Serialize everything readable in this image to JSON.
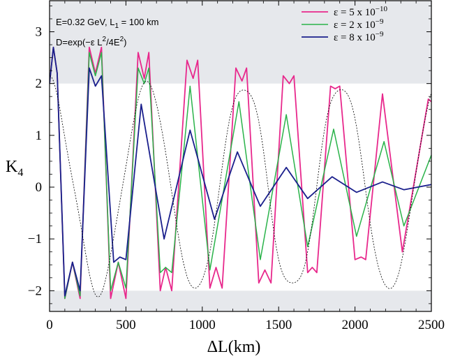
{
  "chart_data": {
    "type": "line",
    "xlabel_main": "ΔL",
    "xlabel_unit": "(km)",
    "ylabel_main": "K",
    "ylabel_sub": "4",
    "xlim": [
      0,
      2500
    ],
    "ylim": [
      -2.4,
      3.6
    ],
    "x_ticks": [
      0,
      500,
      1000,
      1500,
      2000,
      2500
    ],
    "x_tick_labels": [
      "0",
      "500",
      "1000",
      "1500",
      "2000",
      "2500"
    ],
    "y_ticks": [
      -2,
      -1,
      0,
      1,
      2,
      3
    ],
    "y_tick_labels": [
      "−2",
      "−1",
      "0",
      "1",
      "2",
      "3"
    ],
    "shaded_bands": [
      [
        2,
        3.6
      ],
      [
        -2.4,
        -2
      ]
    ],
    "band_color": "#e6e8ec",
    "annotation": {
      "line1_a": "E=0.32 GeV, L",
      "line1_sub": "1",
      "line1_b": " = 100 km",
      "line2_a": "D=exp(−ε L",
      "line2_sup": "2",
      "line2_b": "/4E",
      "line2_sup2": "2",
      "line2_c": ")"
    },
    "model": {
      "base_offset_km": 100,
      "amplitude": 2.15,
      "fast_period_km": 636,
      "slow_period_km": 3150,
      "phase_km": 0,
      "damping_scale": 780000
    },
    "series": [
      {
        "name_prefix": "ε = 5 x 10",
        "name_exp": "−10",
        "epsilon": 5e-10,
        "color": "#e8288c",
        "width": 1.8,
        "dash": "",
        "points": [
          [
            0,
            2.0
          ],
          [
            25,
            2.7
          ],
          [
            50,
            2.2
          ],
          [
            100,
            -2.15
          ],
          [
            150,
            -1.45
          ],
          [
            200,
            -2.15
          ],
          [
            260,
            2.7
          ],
          [
            300,
            2.2
          ],
          [
            340,
            2.7
          ],
          [
            400,
            -2.15
          ],
          [
            450,
            -1.45
          ],
          [
            500,
            -2.15
          ],
          [
            580,
            2.6
          ],
          [
            620,
            2.1
          ],
          [
            650,
            2.6
          ],
          [
            725,
            -2.0
          ],
          [
            760,
            -1.55
          ],
          [
            800,
            -2.0
          ],
          [
            900,
            2.45
          ],
          [
            940,
            2.1
          ],
          [
            970,
            2.45
          ],
          [
            1050,
            -1.95
          ],
          [
            1090,
            -1.55
          ],
          [
            1130,
            -1.95
          ],
          [
            1220,
            2.3
          ],
          [
            1260,
            2.05
          ],
          [
            1290,
            2.3
          ],
          [
            1370,
            -1.85
          ],
          [
            1410,
            -1.6
          ],
          [
            1450,
            -1.85
          ],
          [
            1530,
            2.15
          ],
          [
            1570,
            2.0
          ],
          [
            1600,
            2.15
          ],
          [
            1690,
            -1.65
          ],
          [
            1720,
            -1.55
          ],
          [
            1750,
            -1.65
          ],
          [
            1840,
            1.95
          ],
          [
            1870,
            1.9
          ],
          [
            1900,
            1.95
          ],
          [
            2000,
            -1.4
          ],
          [
            2040,
            -1.35
          ],
          [
            2070,
            -1.4
          ],
          [
            2180,
            1.8
          ],
          [
            2310,
            -1.25
          ],
          [
            2480,
            1.7
          ],
          [
            2500,
            1.65
          ]
        ]
      },
      {
        "name_prefix": "ε = 2 x 10",
        "name_exp": "−9",
        "epsilon": 2e-09,
        "color": "#2ab34a",
        "width": 1.5,
        "dash": "",
        "points": [
          [
            0,
            2.0
          ],
          [
            25,
            2.7
          ],
          [
            50,
            2.2
          ],
          [
            100,
            -2.15
          ],
          [
            150,
            -1.45
          ],
          [
            200,
            -2.1
          ],
          [
            260,
            2.6
          ],
          [
            300,
            2.15
          ],
          [
            340,
            2.6
          ],
          [
            400,
            -2.0
          ],
          [
            450,
            -1.45
          ],
          [
            500,
            -1.95
          ],
          [
            580,
            2.3
          ],
          [
            620,
            2.0
          ],
          [
            650,
            2.3
          ],
          [
            725,
            -1.65
          ],
          [
            760,
            -1.55
          ],
          [
            800,
            -1.65
          ],
          [
            920,
            1.95
          ],
          [
            1050,
            -1.6
          ],
          [
            1240,
            1.65
          ],
          [
            1380,
            -1.4
          ],
          [
            1550,
            1.4
          ],
          [
            1690,
            -1.15
          ],
          [
            1860,
            1.12
          ],
          [
            2010,
            -0.95
          ],
          [
            2190,
            0.88
          ],
          [
            2320,
            -0.75
          ],
          [
            2500,
            0.62
          ]
        ]
      },
      {
        "name_prefix": "ε = 8 x 10",
        "name_exp": "−9",
        "epsilon": 8e-09,
        "color": "#1a1f8c",
        "width": 1.8,
        "dash": "",
        "points": [
          [
            0,
            2.0
          ],
          [
            25,
            2.7
          ],
          [
            50,
            2.2
          ],
          [
            100,
            -2.1
          ],
          [
            150,
            -1.45
          ],
          [
            200,
            -2.0
          ],
          [
            260,
            2.3
          ],
          [
            300,
            1.95
          ],
          [
            340,
            2.15
          ],
          [
            420,
            -1.45
          ],
          [
            460,
            -1.35
          ],
          [
            500,
            -1.4
          ],
          [
            600,
            1.6
          ],
          [
            750,
            -1.0
          ],
          [
            920,
            1.1
          ],
          [
            1080,
            -0.62
          ],
          [
            1230,
            0.68
          ],
          [
            1380,
            -0.37
          ],
          [
            1550,
            0.38
          ],
          [
            1690,
            -0.22
          ],
          [
            1850,
            0.2
          ],
          [
            2010,
            -0.1
          ],
          [
            2180,
            0.1
          ],
          [
            2320,
            -0.05
          ],
          [
            2500,
            0.05
          ]
        ]
      },
      {
        "name_prefix": "",
        "name_exp": "",
        "epsilon": 0,
        "color": "#000000",
        "width": 0.8,
        "dash": "2,2",
        "points": []
      }
    ]
  }
}
